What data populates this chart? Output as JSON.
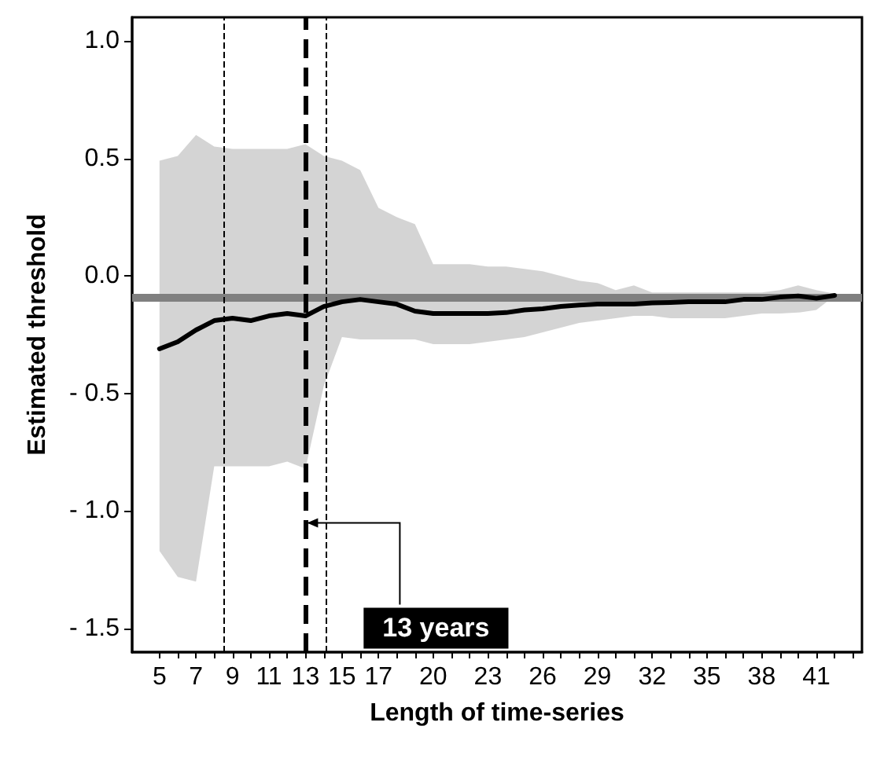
{
  "chart_data": {
    "type": "line",
    "xlabel": "Length of time-series",
    "ylabel": "Estimated threshold",
    "x": [
      5,
      6,
      7,
      8,
      9,
      10,
      11,
      12,
      13,
      14,
      15,
      16,
      17,
      18,
      19,
      20,
      21,
      22,
      23,
      24,
      25,
      26,
      27,
      28,
      29,
      30,
      31,
      32,
      33,
      34,
      35,
      36,
      37,
      38,
      39,
      40,
      41,
      42
    ],
    "series": [
      {
        "color": "#000000",
        "values": [
          -0.31,
          -0.28,
          -0.23,
          -0.19,
          -0.18,
          -0.19,
          -0.17,
          -0.16,
          -0.17,
          -0.13,
          -0.11,
          -0.1,
          -0.11,
          -0.12,
          -0.15,
          -0.16,
          -0.16,
          -0.16,
          -0.16,
          -0.156,
          -0.145,
          -0.14,
          -0.13,
          -0.124,
          -0.12,
          -0.12,
          -0.12,
          -0.115,
          -0.113,
          -0.11,
          -0.11,
          -0.11,
          -0.1,
          -0.1,
          -0.09,
          -0.085,
          -0.095,
          -0.083
        ],
        "upper": [
          0.49,
          0.51,
          0.6,
          0.55,
          0.54,
          0.54,
          0.54,
          0.54,
          0.56,
          0.51,
          0.49,
          0.45,
          0.29,
          0.25,
          0.22,
          0.05,
          0.05,
          0.05,
          0.04,
          0.04,
          0.03,
          0.02,
          0.0,
          -0.02,
          -0.03,
          -0.06,
          -0.04,
          -0.07,
          -0.07,
          -0.07,
          -0.07,
          -0.07,
          -0.07,
          -0.07,
          -0.06,
          -0.04,
          -0.06,
          -0.075
        ],
        "lower": [
          -1.17,
          -1.28,
          -1.3,
          -0.81,
          -0.81,
          -0.81,
          -0.81,
          -0.79,
          -0.82,
          -0.47,
          -0.26,
          -0.27,
          -0.27,
          -0.27,
          -0.27,
          -0.29,
          -0.29,
          -0.29,
          -0.28,
          -0.27,
          -0.26,
          -0.24,
          -0.22,
          -0.2,
          -0.19,
          -0.18,
          -0.17,
          -0.17,
          -0.18,
          -0.18,
          -0.18,
          -0.18,
          -0.17,
          -0.16,
          -0.16,
          -0.156,
          -0.145,
          -0.085
        ]
      }
    ],
    "xlim": [
      3.5,
      43.5
    ],
    "xticks": [
      5,
      {
        "value": 6,
        "label": null
      },
      7,
      {
        "value": 8,
        "label": null
      },
      9,
      {
        "value": 10,
        "label": null
      },
      11,
      {
        "value": 12,
        "label": null
      },
      13,
      {
        "value": 14,
        "label": null
      },
      15,
      {
        "value": 16,
        "label": null
      },
      17,
      {
        "value": 18,
        "label": null
      },
      {
        "value": 19,
        "label": null
      },
      20,
      {
        "value": 21,
        "label": null
      },
      {
        "value": 22,
        "label": null
      },
      23,
      {
        "value": 24,
        "label": null
      },
      {
        "value": 25,
        "label": null
      },
      26,
      {
        "value": 27,
        "label": null
      },
      {
        "value": 28,
        "label": null
      },
      29,
      {
        "value": 30,
        "label": null
      },
      {
        "value": 31,
        "label": null
      },
      32,
      {
        "value": 33,
        "label": null
      },
      {
        "value": 34,
        "label": null
      },
      35,
      {
        "value": 36,
        "label": null
      },
      {
        "value": 37,
        "label": null
      },
      38,
      {
        "value": 39,
        "label": null
      },
      {
        "value": 40,
        "label": null
      },
      41,
      {
        "value": 42,
        "label": null
      },
      {
        "value": 43,
        "label": null
      }
    ],
    "ylim": [
      -1.6,
      1.1
    ],
    "yticks": [
      {
        "value": 1,
        "label": "1.0"
      },
      {
        "value": 0.5,
        "label": "0.5"
      },
      {
        "value": 0,
        "label": "0.0"
      },
      {
        "value": -0.5,
        "label": "- 0.5"
      },
      {
        "value": -1,
        "label": "- 1.0"
      },
      {
        "value": -1.5,
        "label": "- 1.5"
      }
    ],
    "ref_lines": [
      {
        "axis": "y",
        "value": -0.09,
        "color": "#808080",
        "line_style": "solid"
      },
      {
        "axis": "x",
        "value": 8.5,
        "color": "#000000",
        "line_style": "dashed"
      },
      {
        "axis": "x",
        "value": 13,
        "color": "#000000",
        "line_style": "dashed"
      },
      {
        "axis": "x",
        "value": 14.1,
        "color": "#000000",
        "line_style": "dashed"
      }
    ],
    "annotations": [
      {
        "text": "13 years",
        "x": 13,
        "y": -1.05
      }
    ],
    "grid": false,
    "marker": "none",
    "line_style": "solid"
  }
}
